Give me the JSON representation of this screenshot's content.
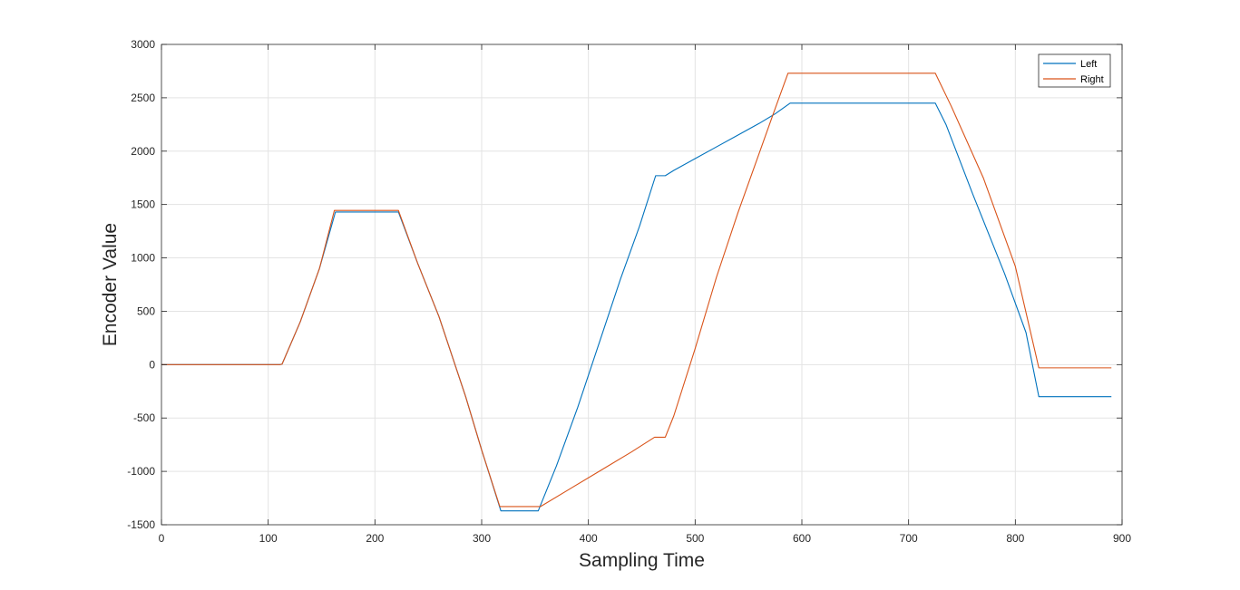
{
  "chart_data": {
    "type": "line",
    "title": "",
    "xlabel": "Sampling Time",
    "ylabel": "Encoder Value",
    "xlim": [
      0,
      900
    ],
    "ylim": [
      -1500,
      3000
    ],
    "xticks": [
      0,
      100,
      200,
      300,
      400,
      500,
      600,
      700,
      800,
      900
    ],
    "yticks": [
      -1500,
      -1000,
      -500,
      0,
      500,
      1000,
      1500,
      2000,
      2500,
      3000
    ],
    "grid": true,
    "legend_position": "top-right",
    "series": [
      {
        "name": "Left",
        "color": "#0072BD",
        "points": [
          [
            0,
            0
          ],
          [
            111,
            0
          ],
          [
            113,
            5
          ],
          [
            130,
            400
          ],
          [
            148,
            900
          ],
          [
            163,
            1430
          ],
          [
            222,
            1430
          ],
          [
            240,
            950
          ],
          [
            260,
            450
          ],
          [
            285,
            -300
          ],
          [
            300,
            -800
          ],
          [
            318,
            -1370
          ],
          [
            353,
            -1370
          ],
          [
            370,
            -950
          ],
          [
            390,
            -400
          ],
          [
            410,
            200
          ],
          [
            430,
            800
          ],
          [
            448,
            1300
          ],
          [
            463,
            1770
          ],
          [
            472,
            1770
          ],
          [
            480,
            1820
          ],
          [
            500,
            1930
          ],
          [
            520,
            2040
          ],
          [
            540,
            2150
          ],
          [
            560,
            2260
          ],
          [
            575,
            2350
          ],
          [
            589,
            2450
          ],
          [
            725,
            2450
          ],
          [
            735,
            2250
          ],
          [
            760,
            1600
          ],
          [
            790,
            850
          ],
          [
            810,
            300
          ],
          [
            822,
            -300
          ],
          [
            890,
            -300
          ]
        ]
      },
      {
        "name": "Right",
        "color": "#D95319",
        "points": [
          [
            0,
            0
          ],
          [
            111,
            0
          ],
          [
            113,
            5
          ],
          [
            130,
            400
          ],
          [
            148,
            900
          ],
          [
            162,
            1445
          ],
          [
            222,
            1445
          ],
          [
            240,
            950
          ],
          [
            260,
            450
          ],
          [
            285,
            -300
          ],
          [
            300,
            -800
          ],
          [
            317,
            -1330
          ],
          [
            355,
            -1330
          ],
          [
            380,
            -1180
          ],
          [
            410,
            -1000
          ],
          [
            440,
            -820
          ],
          [
            462,
            -680
          ],
          [
            472,
            -680
          ],
          [
            480,
            -480
          ],
          [
            500,
            150
          ],
          [
            520,
            820
          ],
          [
            540,
            1420
          ],
          [
            560,
            1980
          ],
          [
            575,
            2400
          ],
          [
            587,
            2730
          ],
          [
            725,
            2730
          ],
          [
            740,
            2420
          ],
          [
            770,
            1750
          ],
          [
            800,
            920
          ],
          [
            822,
            -30
          ],
          [
            890,
            -30
          ]
        ]
      }
    ]
  }
}
